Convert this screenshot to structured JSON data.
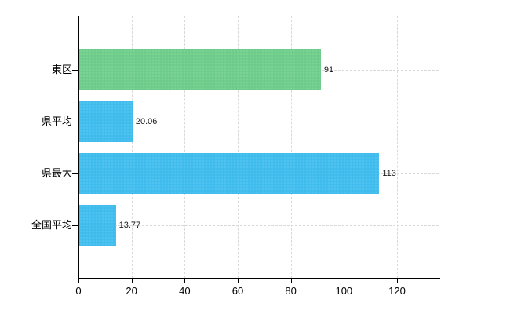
{
  "chart_data": {
    "type": "bar",
    "orientation": "horizontal",
    "title": "",
    "xlabel": "",
    "ylabel": "",
    "categories": [
      "東区",
      "県平均",
      "県最大",
      "全国平均"
    ],
    "values": [
      91,
      20.06,
      113,
      13.77
    ],
    "value_labels": [
      "91",
      "20.06",
      "113",
      "13.77"
    ],
    "bar_colors": [
      "#6fce8c",
      "#41bdee",
      "#41bdee",
      "#41bdee"
    ],
    "x_ticks": [
      0,
      20,
      40,
      60,
      80,
      100,
      120
    ],
    "x_tick_labels": [
      "0",
      "20",
      "40",
      "60",
      "80",
      "100",
      "120"
    ],
    "xlim": [
      0,
      135.7
    ],
    "grid": true,
    "legend": false
  },
  "colors": {
    "background": "#ffffff",
    "axis": "#000000",
    "grid": "#d9d9d9",
    "text": "#1a1a1a",
    "bar_green": "#6fce8c",
    "bar_blue": "#41bdee"
  }
}
